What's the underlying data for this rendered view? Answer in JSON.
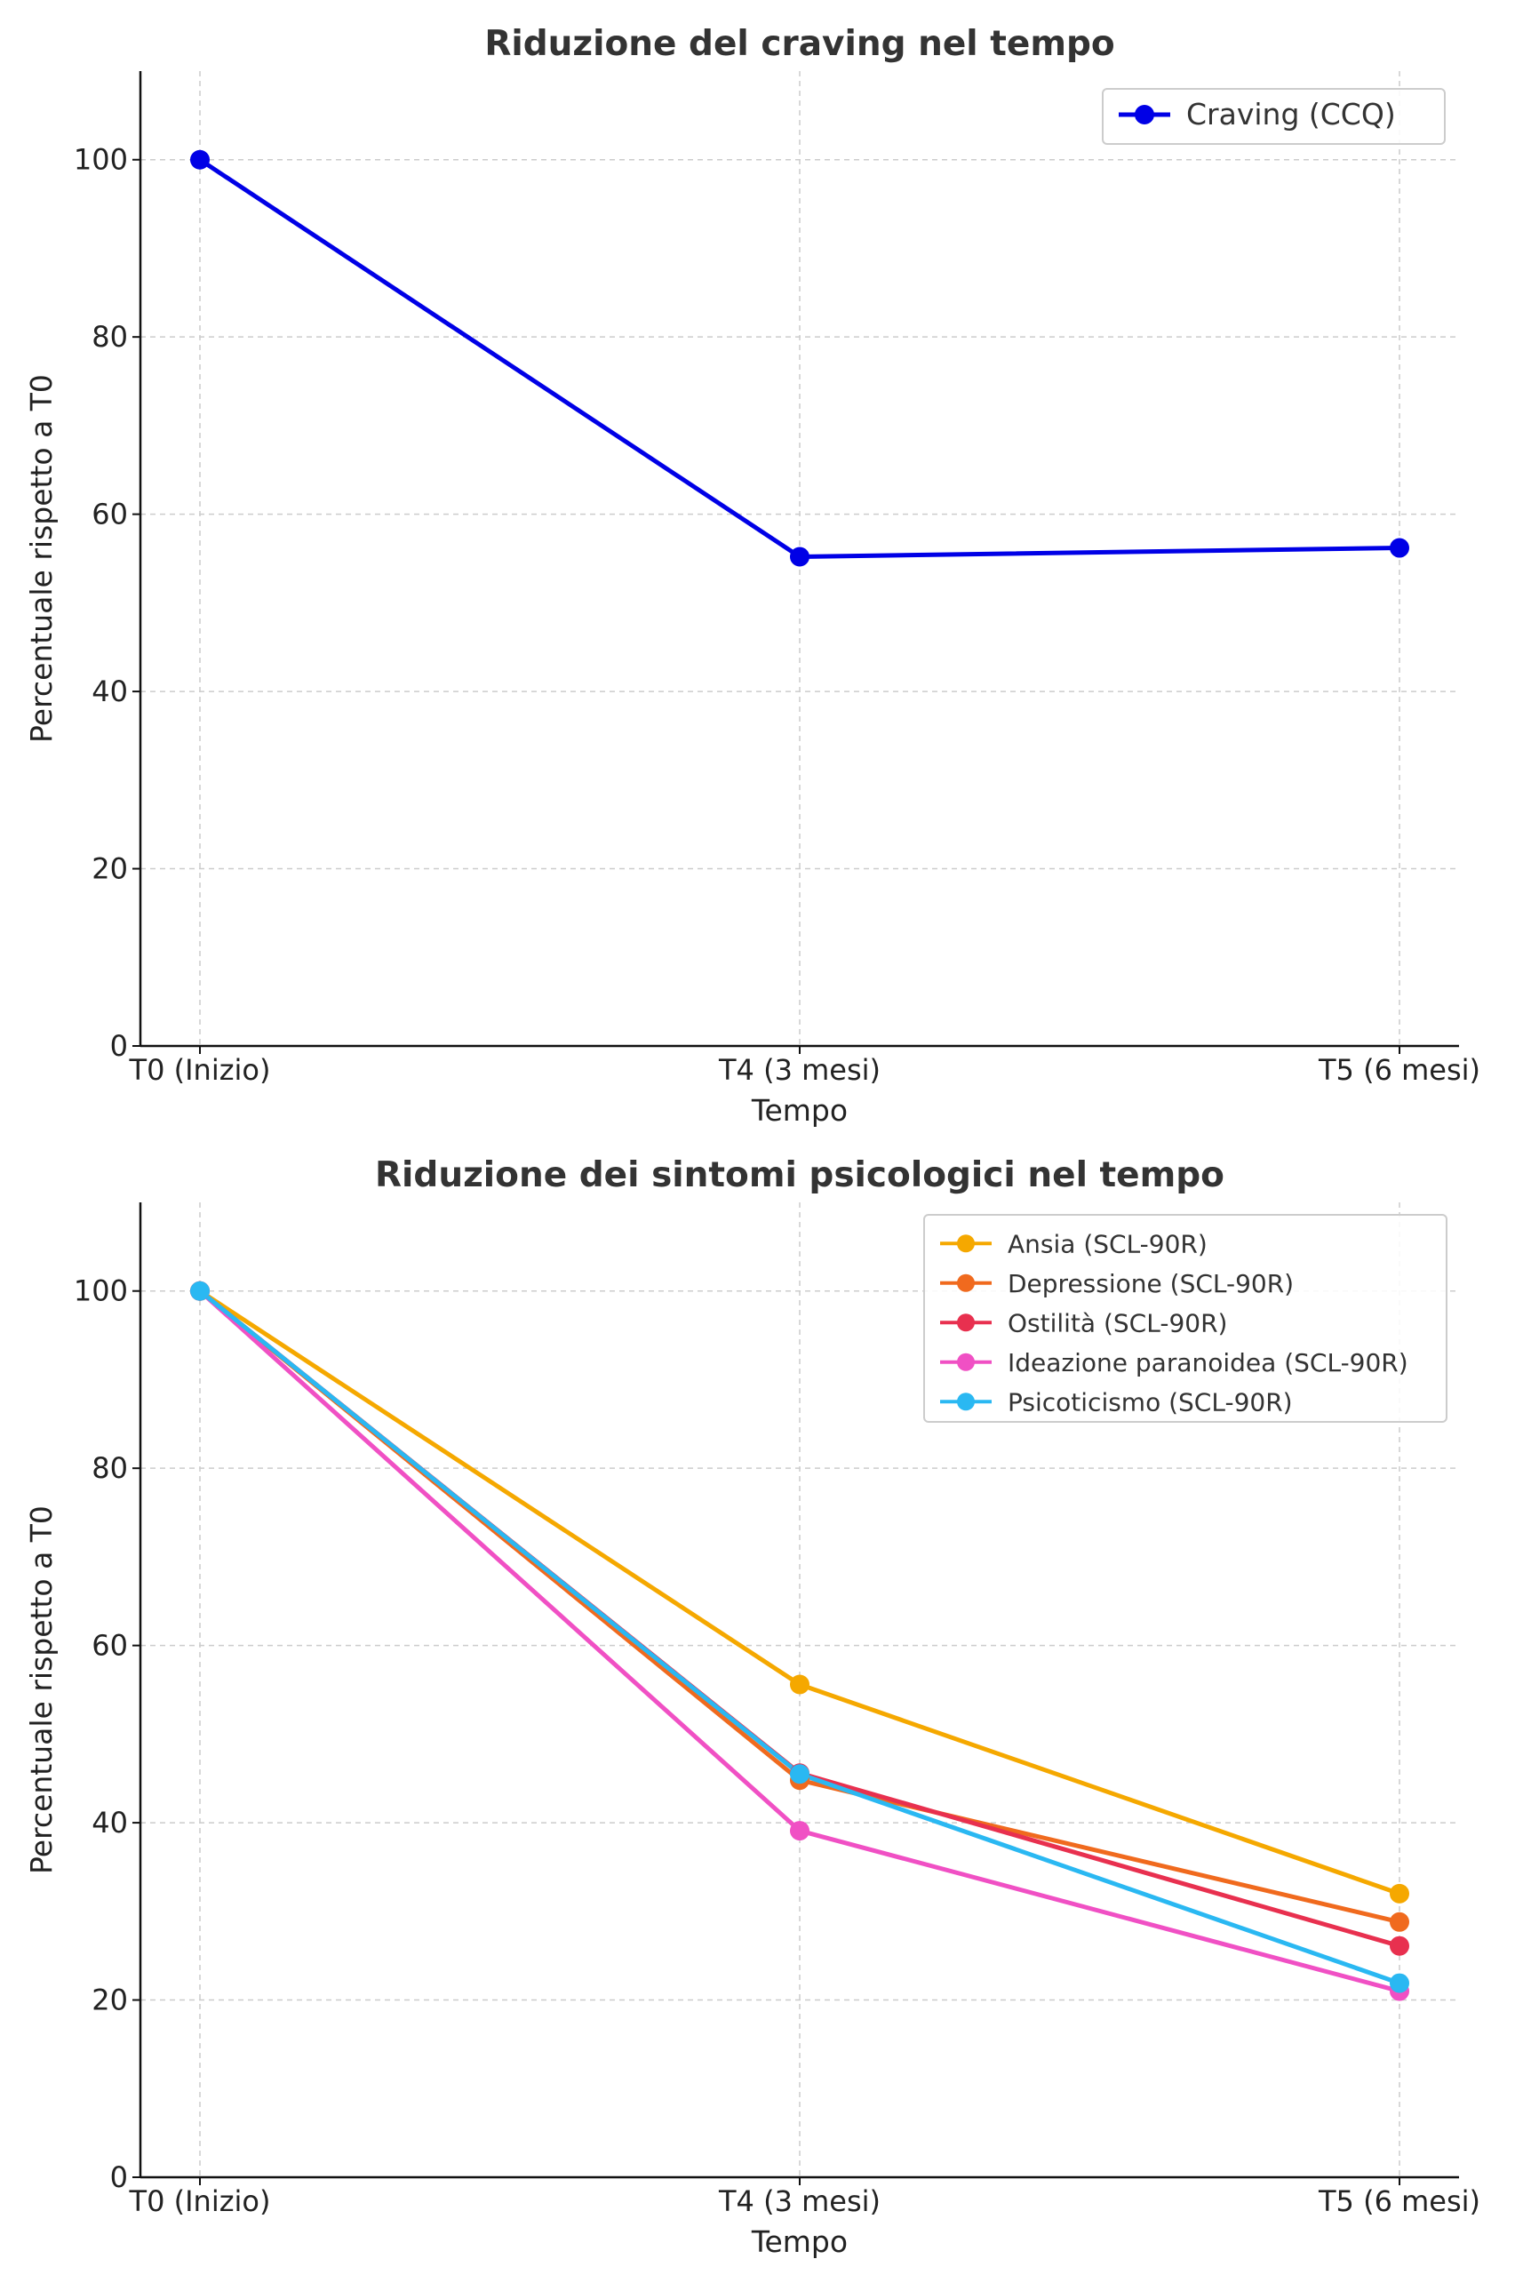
{
  "chart_data": [
    {
      "type": "line",
      "title": "Riduzione del craving nel tempo",
      "xlabel": "Tempo",
      "ylabel": "Percentuale rispetto a T0",
      "categories": [
        "T0 (Inizio)",
        "T4 (3 mesi)",
        "T5 (6 mesi)"
      ],
      "ylim": [
        0,
        110
      ],
      "yticks": [
        0,
        20,
        40,
        60,
        80,
        100
      ],
      "grid": true,
      "legend_position": "top-right",
      "series": [
        {
          "name": "Craving (CCQ)",
          "values": [
            100,
            55.2,
            56.2
          ],
          "color": "#0000e6"
        }
      ]
    },
    {
      "type": "line",
      "title": "Riduzione dei sintomi psicologici nel tempo",
      "xlabel": "Tempo",
      "ylabel": "Percentuale rispetto a T0",
      "categories": [
        "T0 (Inizio)",
        "T4 (3 mesi)",
        "T5 (6 mesi)"
      ],
      "ylim": [
        0,
        110
      ],
      "yticks": [
        0,
        20,
        40,
        60,
        80,
        100
      ],
      "grid": true,
      "legend_position": "top-right",
      "series": [
        {
          "name": "Ansia (SCL-90R)",
          "values": [
            100,
            55.6,
            32.0
          ],
          "color": "#f5a800"
        },
        {
          "name": "Depressione (SCL-90R)",
          "values": [
            100,
            44.8,
            28.8
          ],
          "color": "#f06a1e"
        },
        {
          "name": "Ostilità (SCL-90R)",
          "values": [
            100,
            45.6,
            26.1
          ],
          "color": "#e8304f"
        },
        {
          "name": "Ideazione paranoidea (SCL-90R)",
          "values": [
            100,
            39.1,
            21.0
          ],
          "color": "#f050c4"
        },
        {
          "name": "Psicoticismo (SCL-90R)",
          "values": [
            100,
            45.5,
            21.9
          ],
          "color": "#2ab8f2"
        }
      ]
    }
  ]
}
